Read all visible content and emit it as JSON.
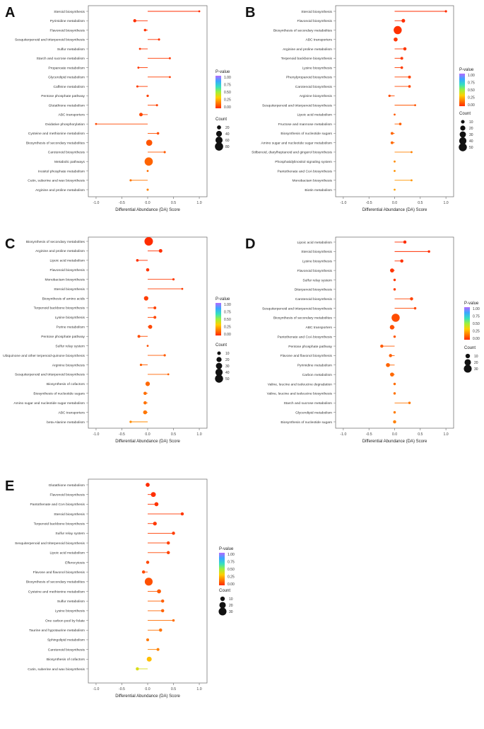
{
  "figure": {
    "panels": [
      "A",
      "B",
      "C",
      "D",
      "E"
    ]
  },
  "colorbar": {
    "title": "P-value",
    "ticks": [
      "1.00",
      "0.75",
      "0.50",
      "0.25",
      "0.00"
    ],
    "colors": [
      "#b36bff",
      "#39a7ff",
      "#34e0c0",
      "#9ef03c",
      "#ffd000",
      "#ff7a00",
      "#ff2a00"
    ]
  },
  "chart_data": [
    {
      "panel": "A",
      "type": "scatter",
      "xlabel": "Differential Abundance (DA) Score",
      "x_ticks": [
        "-1.0",
        "-0.5",
        "0.0",
        "0.5",
        "1.0"
      ],
      "xlim": [
        -1.15,
        1.15
      ],
      "legend_title": "Count",
      "legend_counts": [
        20,
        40,
        60,
        80
      ],
      "count_range": [
        5,
        85
      ],
      "pathways": [
        {
          "name": "Steroid biosynthesis",
          "da": 1.0,
          "count": 5,
          "p": 0.005
        },
        {
          "name": "Pyrimidine metabolism",
          "da": -0.25,
          "count": 12,
          "p": 0.01
        },
        {
          "name": "Flavonoid biosynthesis",
          "da": -0.05,
          "count": 8,
          "p": 0.02
        },
        {
          "name": "Sesquiterpenoid and triterpenoid biosynthesis",
          "da": 0.22,
          "count": 6,
          "p": 0.02
        },
        {
          "name": "Sulfur metabolism",
          "da": -0.15,
          "count": 5,
          "p": 0.02
        },
        {
          "name": "Starch and sucrose metabolism",
          "da": 0.43,
          "count": 5,
          "p": 0.03
        },
        {
          "name": "Propanoate metabolism",
          "da": -0.18,
          "count": 5,
          "p": 0.03
        },
        {
          "name": "Glycerolipid metabolism",
          "da": 0.43,
          "count": 5,
          "p": 0.04
        },
        {
          "name": "Caffeine metabolism",
          "da": -0.2,
          "count": 6,
          "p": 0.04
        },
        {
          "name": "Pentose phosphate pathway",
          "da": 0.0,
          "count": 7,
          "p": 0.05
        },
        {
          "name": "Glutathione metabolism",
          "da": 0.18,
          "count": 6,
          "p": 0.05
        },
        {
          "name": "ABC transporters",
          "da": -0.13,
          "count": 15,
          "p": 0.06
        },
        {
          "name": "Oxidative phosphorylation",
          "da": -1.0,
          "count": 3,
          "p": 0.06
        },
        {
          "name": "Cysteine and methionine metabolism",
          "da": 0.2,
          "count": 8,
          "p": 0.08
        },
        {
          "name": "Biosynthesis of secondary metabolites",
          "da": 0.03,
          "count": 45,
          "p": 0.09
        },
        {
          "name": "Carotenoid biosynthesis",
          "da": 0.33,
          "count": 6,
          "p": 0.1
        },
        {
          "name": "Metabolic pathways",
          "da": 0.02,
          "count": 80,
          "p": 0.12
        },
        {
          "name": "Inositol phosphate metabolism",
          "da": 0.0,
          "count": 5,
          "p": 0.14
        },
        {
          "name": "Cutin, suberine and wax biosynthesis",
          "da": -0.33,
          "count": 6,
          "p": 0.16
        },
        {
          "name": "Arginine and proline metabolism",
          "da": 0.0,
          "count": 6,
          "p": 0.18
        }
      ]
    },
    {
      "panel": "B",
      "type": "scatter",
      "xlabel": "Differential Abundance (DA) Score",
      "x_ticks": [
        "-1.0",
        "-0.5",
        "0.0",
        "0.5",
        "1.0"
      ],
      "xlim": [
        -1.15,
        1.15
      ],
      "legend_title": "Count",
      "legend_counts": [
        10,
        20,
        30,
        40,
        50
      ],
      "count_range": [
        3,
        55
      ],
      "pathways": [
        {
          "name": "Steroid biosynthesis",
          "da": 1.0,
          "count": 4,
          "p": 0.005
        },
        {
          "name": "Flavonoid biosynthesis",
          "da": 0.17,
          "count": 10,
          "p": 0.01
        },
        {
          "name": "Biosynthesis of secondary metabolites",
          "da": 0.06,
          "count": 50,
          "p": 0.015
        },
        {
          "name": "ABC transporters",
          "da": 0.02,
          "count": 12,
          "p": 0.02
        },
        {
          "name": "Arginine and proline metabolism",
          "da": 0.2,
          "count": 8,
          "p": 0.03
        },
        {
          "name": "Terpenoid backbone biosynthesis",
          "da": 0.14,
          "count": 6,
          "p": 0.03
        },
        {
          "name": "Lysine biosynthesis",
          "da": 0.14,
          "count": 5,
          "p": 0.04
        },
        {
          "name": "Phenylpropanoid biosynthesis",
          "da": 0.29,
          "count": 6,
          "p": 0.05
        },
        {
          "name": "Carotenoid biosynthesis",
          "da": 0.29,
          "count": 5,
          "p": 0.06
        },
        {
          "name": "Arginine biosynthesis",
          "da": -0.1,
          "count": 4,
          "p": 0.07
        },
        {
          "name": "Sesquiterpenoid and triterpenoid biosynthesis",
          "da": 0.4,
          "count": 3,
          "p": 0.09
        },
        {
          "name": "Lipoic acid metabolism",
          "da": 0.0,
          "count": 3,
          "p": 0.1
        },
        {
          "name": "Fructose and mannose metabolism",
          "da": 0.11,
          "count": 5,
          "p": 0.11
        },
        {
          "name": "Biosynthesis of nucleotide sugars",
          "da": -0.05,
          "count": 6,
          "p": 0.12
        },
        {
          "name": "Amino sugar and nucleotide sugar metabolism",
          "da": -0.05,
          "count": 6,
          "p": 0.13
        },
        {
          "name": "Stilbenoid, diarylheptanoid and gingerol biosynthesis",
          "da": 0.33,
          "count": 3,
          "p": 0.18
        },
        {
          "name": "Phosphatidylinositol signaling system",
          "da": 0.0,
          "count": 3,
          "p": 0.2
        },
        {
          "name": "Pantothenate and CoA biosynthesis",
          "da": 0.0,
          "count": 3,
          "p": 0.21
        },
        {
          "name": "Monobactam biosynthesis",
          "da": 0.33,
          "count": 3,
          "p": 0.22
        },
        {
          "name": "Biotin metabolism",
          "da": 0.0,
          "count": 3,
          "p": 0.24
        }
      ]
    },
    {
      "panel": "C",
      "type": "scatter",
      "xlabel": "Differential Abundance (DA) Score",
      "x_ticks": [
        "-1.0",
        "-0.5",
        "0.0",
        "0.5",
        "1.0"
      ],
      "xlim": [
        -1.15,
        1.15
      ],
      "legend_title": "Count",
      "legend_counts": [
        10,
        20,
        30,
        40,
        50
      ],
      "count_range": [
        3,
        55
      ],
      "pathways": [
        {
          "name": "Biosynthesis of secondary metabolites",
          "da": 0.02,
          "count": 55,
          "p": 0.005
        },
        {
          "name": "Arginine and proline metabolism",
          "da": 0.25,
          "count": 10,
          "p": 0.01
        },
        {
          "name": "Lipoic acid metabolism",
          "da": -0.2,
          "count": 5,
          "p": 0.015
        },
        {
          "name": "Flavonoid biosynthesis",
          "da": 0.0,
          "count": 8,
          "p": 0.02
        },
        {
          "name": "Monobactam biosynthesis",
          "da": 0.5,
          "count": 4,
          "p": 0.03
        },
        {
          "name": "Steroid biosynthesis",
          "da": 0.67,
          "count": 3,
          "p": 0.04
        },
        {
          "name": "Biosynthesis of amino acids",
          "da": -0.03,
          "count": 15,
          "p": 0.04
        },
        {
          "name": "Terpenoid backbone biosynthesis",
          "da": 0.14,
          "count": 6,
          "p": 0.05
        },
        {
          "name": "Lysine biosynthesis",
          "da": 0.14,
          "count": 6,
          "p": 0.06
        },
        {
          "name": "Purine metabolism",
          "da": 0.05,
          "count": 12,
          "p": 0.06
        },
        {
          "name": "Pentose phosphate pathway",
          "da": -0.17,
          "count": 6,
          "p": 0.07
        },
        {
          "name": "Sulfur relay system",
          "da": 0.0,
          "count": 3,
          "p": 0.08
        },
        {
          "name": "Ubiquinone and other terpenoid-quinone biosynthesis",
          "da": 0.33,
          "count": 4,
          "p": 0.1
        },
        {
          "name": "Arginine biosynthesis",
          "da": -0.13,
          "count": 4,
          "p": 0.11
        },
        {
          "name": "Sesquiterpenoid and triterpenoid biosynthesis",
          "da": 0.4,
          "count": 3,
          "p": 0.12
        },
        {
          "name": "Biosynthesis of cofactors",
          "da": 0.0,
          "count": 15,
          "p": 0.13
        },
        {
          "name": "Biosynthesis of nucleotide sugars",
          "da": -0.05,
          "count": 8,
          "p": 0.14
        },
        {
          "name": "Amino sugar and nucleotide sugar metabolism",
          "da": -0.05,
          "count": 8,
          "p": 0.15
        },
        {
          "name": "ABC transporters",
          "da": -0.05,
          "count": 12,
          "p": 0.16
        },
        {
          "name": "beta-Alanine metabolism",
          "da": -0.33,
          "count": 4,
          "p": 0.2
        }
      ]
    },
    {
      "panel": "D",
      "type": "scatter",
      "xlabel": "Differential Abundance (DA) Score",
      "x_ticks": [
        "-1.0",
        "-0.5",
        "0.0",
        "0.5",
        "1.0"
      ],
      "xlim": [
        -1.15,
        1.15
      ],
      "legend_title": "Count",
      "legend_counts": [
        10,
        20,
        30
      ],
      "count_range": [
        2,
        35
      ],
      "pathways": [
        {
          "name": "Lipoic acid metabolism",
          "da": 0.2,
          "count": 5,
          "p": 0.005
        },
        {
          "name": "Steroid biosynthesis",
          "da": 0.67,
          "count": 3,
          "p": 0.01
        },
        {
          "name": "Lysine biosynthesis",
          "da": 0.14,
          "count": 5,
          "p": 0.015
        },
        {
          "name": "Flavonoid biosynthesis",
          "da": -0.05,
          "count": 8,
          "p": 0.02
        },
        {
          "name": "Sulfur relay system",
          "da": 0.0,
          "count": 3,
          "p": 0.03
        },
        {
          "name": "Diterpenoid biosynthesis",
          "da": 0.0,
          "count": 3,
          "p": 0.04
        },
        {
          "name": "Carotenoid biosynthesis",
          "da": 0.33,
          "count": 5,
          "p": 0.05
        },
        {
          "name": "Sesquiterpenoid and triterpenoid biosynthesis",
          "da": 0.4,
          "count": 3,
          "p": 0.06
        },
        {
          "name": "Biosynthesis of secondary metabolites",
          "da": 0.02,
          "count": 32,
          "p": 0.07
        },
        {
          "name": "ABC transporters",
          "da": -0.05,
          "count": 10,
          "p": 0.08
        },
        {
          "name": "Pantothenate and CoA biosynthesis",
          "da": 0.0,
          "count": 3,
          "p": 0.09
        },
        {
          "name": "Pentose phosphate pathway",
          "da": -0.25,
          "count": 5,
          "p": 0.1
        },
        {
          "name": "Flavone and flavonol biosynthesis",
          "da": -0.08,
          "count": 5,
          "p": 0.11
        },
        {
          "name": "Pyrimidine metabolism",
          "da": -0.13,
          "count": 8,
          "p": 0.12
        },
        {
          "name": "Carbon metabolism",
          "da": -0.05,
          "count": 8,
          "p": 0.13
        },
        {
          "name": "Valine, leucine and isoleucine degradation",
          "da": 0.0,
          "count": 3,
          "p": 0.14
        },
        {
          "name": "Valine, leucine and isoleucine biosynthesis",
          "da": 0.0,
          "count": 3,
          "p": 0.15
        },
        {
          "name": "Starch and sucrose metabolism",
          "da": 0.29,
          "count": 3,
          "p": 0.16
        },
        {
          "name": "Glycerolipid metabolism",
          "da": 0.0,
          "count": 3,
          "p": 0.17
        },
        {
          "name": "Biosynthesis of nucleotide sugars",
          "da": 0.0,
          "count": 5,
          "p": 0.18
        }
      ]
    },
    {
      "panel": "E",
      "type": "scatter",
      "xlabel": "Differential Abundance (DA) Score",
      "x_ticks": [
        "-1.0",
        "-0.5",
        "0.0",
        "0.5",
        "1.0"
      ],
      "xlim": [
        -1.15,
        1.15
      ],
      "legend_title": "Count",
      "legend_counts": [
        10,
        20,
        30
      ],
      "count_range": [
        2,
        35
      ],
      "pathways": [
        {
          "name": "Glutathione metabolism",
          "da": 0.0,
          "count": 8,
          "p": 0.005
        },
        {
          "name": "Flavonoid biosynthesis",
          "da": 0.11,
          "count": 12,
          "p": 0.01
        },
        {
          "name": "Pantothenate and CoA biosynthesis",
          "da": 0.17,
          "count": 8,
          "p": 0.02
        },
        {
          "name": "Steroid biosynthesis",
          "da": 0.67,
          "count": 5,
          "p": 0.025
        },
        {
          "name": "Terpenoid backbone biosynthesis",
          "da": 0.14,
          "count": 7,
          "p": 0.03
        },
        {
          "name": "Sulfur relay system",
          "da": 0.5,
          "count": 5,
          "p": 0.04
        },
        {
          "name": "Sesquiterpenoid and triterpenoid biosynthesis",
          "da": 0.4,
          "count": 5,
          "p": 0.05
        },
        {
          "name": "Lipoic acid metabolism",
          "da": 0.4,
          "count": 5,
          "p": 0.055
        },
        {
          "name": "Efferocytosis",
          "da": 0.0,
          "count": 5,
          "p": 0.06
        },
        {
          "name": "Flavone and flavonol biosynthesis",
          "da": -0.08,
          "count": 5,
          "p": 0.07
        },
        {
          "name": "Biosynthesis of secondary metabolites",
          "da": 0.02,
          "count": 30,
          "p": 0.08
        },
        {
          "name": "Cysteine and methionine metabolism",
          "da": 0.22,
          "count": 8,
          "p": 0.1
        },
        {
          "name": "Sulfur metabolism",
          "da": 0.29,
          "count": 5,
          "p": 0.11
        },
        {
          "name": "Lysine biosynthesis",
          "da": 0.29,
          "count": 5,
          "p": 0.12
        },
        {
          "name": "One carbon pool by folate",
          "da": 0.5,
          "count": 3,
          "p": 0.14
        },
        {
          "name": "Taurine and hypotaurine metabolism",
          "da": 0.25,
          "count": 5,
          "p": 0.15
        },
        {
          "name": "Sphingolipid metabolism",
          "da": 0.0,
          "count": 4,
          "p": 0.16
        },
        {
          "name": "Carotenoid biosynthesis",
          "da": 0.2,
          "count": 4,
          "p": 0.18
        },
        {
          "name": "Biosynthesis of cofactors",
          "da": 0.03,
          "count": 12,
          "p": 0.3
        },
        {
          "name": "Cutin, suberine and wax biosynthesis",
          "da": -0.2,
          "count": 5,
          "p": 0.4
        }
      ]
    }
  ]
}
